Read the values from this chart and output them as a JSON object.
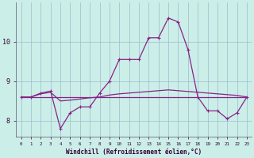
{
  "xlabel": "Windchill (Refroidissement éolien,°C)",
  "background_color": "#cceee8",
  "line_color": "#882288",
  "grid_color": "#99bbcc",
  "hours": [
    0,
    1,
    2,
    3,
    4,
    5,
    6,
    7,
    8,
    9,
    10,
    11,
    12,
    13,
    14,
    15,
    16,
    17,
    18,
    19,
    20,
    21,
    22,
    23
  ],
  "main_series": [
    8.6,
    8.6,
    8.7,
    8.75,
    7.8,
    8.2,
    8.35,
    8.35,
    8.7,
    9.0,
    9.55,
    9.55,
    9.55,
    10.1,
    10.1,
    10.6,
    10.5,
    9.8,
    8.6,
    8.25,
    8.25,
    8.05,
    8.2,
    8.6
  ],
  "flat_line": [
    8.6,
    8.6,
    8.6,
    8.6,
    8.6,
    8.6,
    8.6,
    8.6,
    8.6,
    8.6,
    8.6,
    8.6,
    8.6,
    8.6,
    8.6,
    8.6,
    8.6,
    8.6,
    8.6,
    8.6,
    8.6,
    8.6,
    8.6,
    8.6
  ],
  "curve_series": [
    8.6,
    8.6,
    8.68,
    8.72,
    8.5,
    8.52,
    8.55,
    8.58,
    8.6,
    8.65,
    8.68,
    8.7,
    8.72,
    8.74,
    8.76,
    8.78,
    8.76,
    8.74,
    8.72,
    8.7,
    8.68,
    8.66,
    8.64,
    8.6
  ],
  "ylim": [
    7.6,
    11.0
  ],
  "yticks": [
    8,
    9,
    10
  ],
  "xlim": [
    -0.5,
    23.5
  ]
}
